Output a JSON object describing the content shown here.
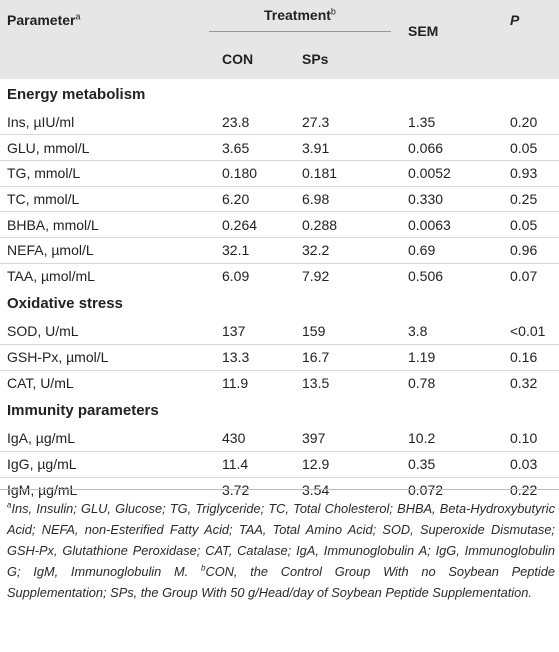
{
  "header": {
    "parameter": "Parameter",
    "parameter_sup": "a",
    "treatment": "Treatment",
    "treatment_sup": "b",
    "sem": "SEM",
    "p": "P",
    "con": "CON",
    "sps": "SPs"
  },
  "sections": [
    {
      "title": "Energy metabolism",
      "rows": [
        [
          "Ins, µIU/ml",
          "23.8",
          "27.3",
          "1.35",
          "0.20"
        ],
        [
          "GLU, mmol/L",
          "3.65",
          "3.91",
          "0.066",
          "0.05"
        ],
        [
          "TG, mmol/L",
          "0.180",
          "0.181",
          "0.0052",
          "0.93"
        ],
        [
          "TC, mmol/L",
          "6.20",
          "6.98",
          "0.330",
          "0.25"
        ],
        [
          "BHBA, mmol/L",
          "0.264",
          "0.288",
          "0.0063",
          "0.05"
        ],
        [
          "NEFA, µmol/L",
          "32.1",
          "32.2",
          "0.69",
          "0.96"
        ],
        [
          "TAA, µmol/mL",
          "6.09",
          "7.92",
          "0.506",
          "0.07"
        ]
      ]
    },
    {
      "title": "Oxidative stress",
      "rows": [
        [
          "SOD, U/mL",
          "137",
          "159",
          "3.8",
          "<0.01"
        ],
        [
          "GSH-Px, µmol/L",
          "13.3",
          "16.7",
          "1.19",
          "0.16"
        ],
        [
          "CAT, U/mL",
          "11.9",
          "13.5",
          "0.78",
          "0.32"
        ]
      ]
    },
    {
      "title": "Immunity parameters",
      "rows": [
        [
          "IgA, µg/mL",
          "430",
          "397",
          "10.2",
          "0.10"
        ],
        [
          "IgG, µg/mL",
          "11.4",
          "12.9",
          "0.35",
          "0.03"
        ],
        [
          "IgM, µg/mL",
          "3.72",
          "3.54",
          "0.072",
          "0.22"
        ]
      ]
    }
  ],
  "footnote": {
    "sup_a": "a",
    "text_a": "Ins, Insulin; GLU, Glucose; TG, Triglyceride; TC, Total Cholesterol; BHBA, Beta-Hydroxybutyric Acid; NEFA, non-Esterified Fatty Acid; TAA, Total Amino Acid; SOD, Superoxide Dismutase; GSH-Px, Glutathione Peroxidase; CAT, Catalase; IgA, Immunoglobulin A; IgG, Immunoglobulin G; IgM, Immunoglobulin M.",
    "sup_b": "b",
    "text_b": "CON, the Control Group With no Soybean Peptide Supplementation; SPs, the Group With 50 g/Head/day of Soybean Peptide Supplementation."
  }
}
